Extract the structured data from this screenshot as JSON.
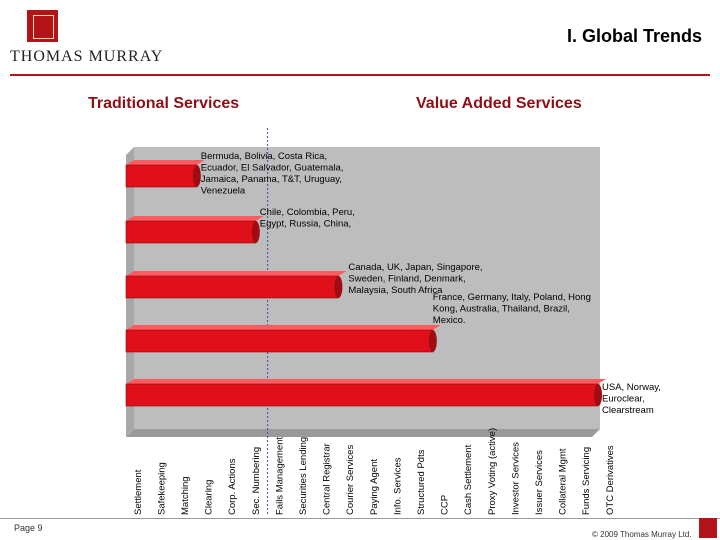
{
  "header": {
    "logo_text": "THOMAS MURRAY",
    "page_title": "I. Global Trends"
  },
  "sections": {
    "traditional": "Traditional Services",
    "value_added": "Value Added Services"
  },
  "footer": {
    "page": "Page 9",
    "copyright": "© 2009 Thomas Murray Ltd."
  },
  "colors": {
    "brand_red": "#b3141c",
    "bar_red": "#e0101a",
    "section_red": "#8e0f15",
    "divider_blue": "#3355aa"
  },
  "chart_data": {
    "type": "bar",
    "orientation": "horizontal",
    "categories": [
      "Settlement",
      "Safekeeping",
      "Matching",
      "Clearing",
      "Corp. Actions",
      "Sec. Numbering",
      "Fails Management",
      "Securities Lending",
      "Central Registrar",
      "Courier Services",
      "Paying Agent",
      "Info. Services",
      "Structured Pdts",
      "CCP",
      "Cash Settlement",
      "Proxy Voting (active)",
      "Investor Services",
      "Issuer Services",
      "Collateral Mgmt",
      "Funds Servicing",
      "OTC Derivatives"
    ],
    "divider_after_category": 6,
    "series": [
      {
        "label": "Bermuda, Bolivia, Costa Rica, Ecuador, El Salvador, Guatemala, Jamaica, Panama, T&T, Uruguay, Venezuela",
        "services_covered": 3
      },
      {
        "label": "Chile, Colombia, Peru, Egypt, Russia, China,",
        "services_covered": 5.5
      },
      {
        "label": "Canada, UK, Japan, Singapore, Sweden, Finland, Denmark, Malaysia, South Africa",
        "services_covered": 9
      },
      {
        "label": "France, Germany, Italy, Poland, Hong Kong, Australia, Thailand, Brazil, Mexico.",
        "services_covered": 13
      },
      {
        "label": "USA, Norway, Euroclear, Clearstream",
        "services_covered": 20
      }
    ]
  }
}
